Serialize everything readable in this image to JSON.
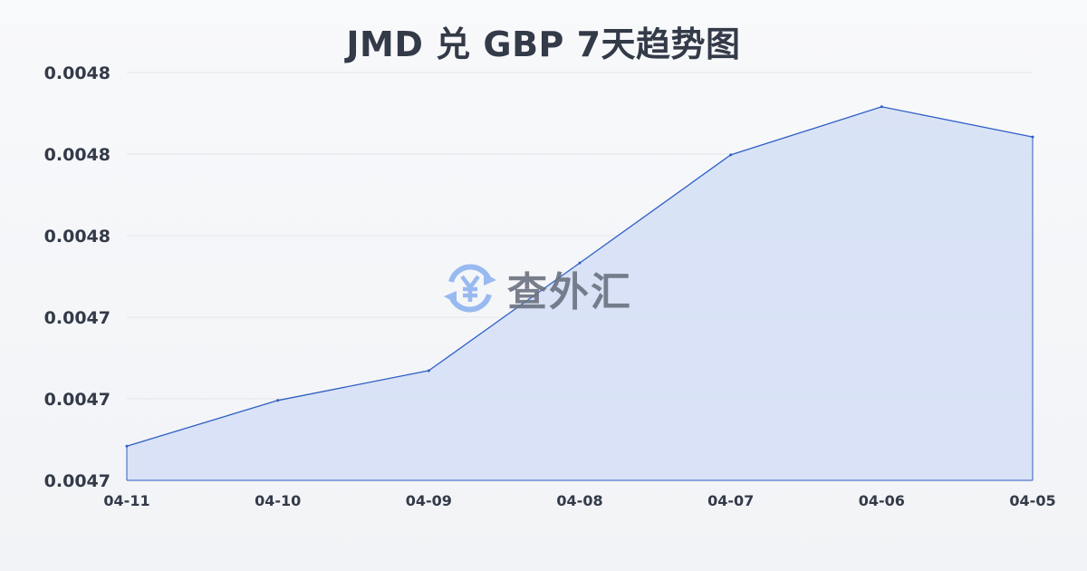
{
  "chart_data": {
    "type": "area",
    "title": "JMD 兑 GBP 7天趋势图",
    "xlabel": "",
    "ylabel": "",
    "categories": [
      "04-11",
      "04-10",
      "04-09",
      "04-08",
      "04-07",
      "04-06",
      "04-05"
    ],
    "series": [
      {
        "values": [
          0.0047084,
          0.0047196,
          0.0047269,
          0.0047533,
          0.0047798,
          0.0047916,
          0.0047842
        ]
      }
    ],
    "ylim": [
      0.0047,
      0.0048
    ],
    "yticks": [
      0.0047,
      0.00472,
      0.00474,
      0.00476,
      0.00478,
      0.0048
    ],
    "ytick_labels": [
      "0.0047",
      "0.0047",
      "0.0047",
      "0.0048",
      "0.0048",
      "0.0048"
    ],
    "grid": true,
    "line_color": "#2f5fc4",
    "fill_color": "#d6e0f5"
  },
  "watermark": {
    "text": "查外汇",
    "icon": "yen-exchange-icon",
    "icon_color": "#8fb4f0"
  }
}
